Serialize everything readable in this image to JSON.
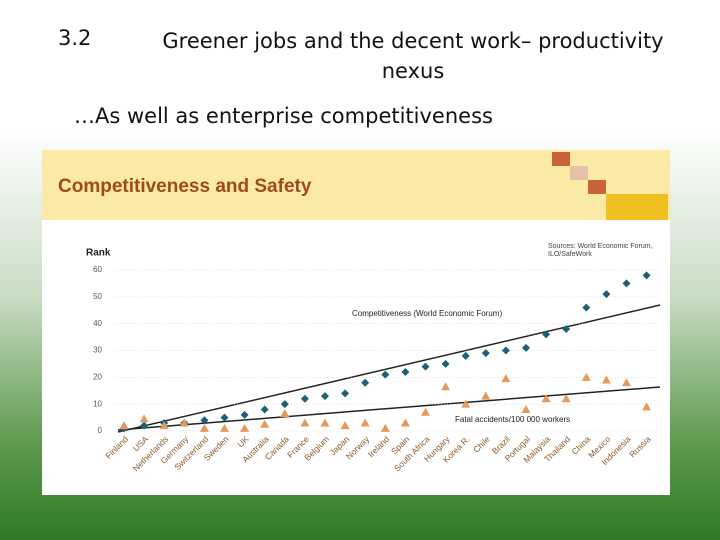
{
  "slide": {
    "number": "3.2",
    "title": "Greener jobs and the decent work– productivity nexus",
    "subtitle": "…As well as enterprise competitiveness"
  },
  "chart_data": {
    "type": "scatter",
    "title": "Competitiveness and Safety",
    "ylabel": "Rank",
    "source": "Sources: World Economic Forum, ILO/SafeWork",
    "categories": [
      "Finland",
      "USA",
      "Netherlands",
      "Germany",
      "Switzerland",
      "Sweden",
      "UK",
      "Australia",
      "Canada",
      "France",
      "Belgium",
      "Japan",
      "Norway",
      "Ireland",
      "Spain",
      "South Africa",
      "Hungary",
      "Korea R.",
      "Chile",
      "Brazil",
      "Portugal",
      "Malaysia",
      "Thailand",
      "China",
      "Mexico",
      "Indonesia",
      "Russia"
    ],
    "series": [
      {
        "name": "Competitiveness (World Economic Forum)",
        "color": "#1f5f7a",
        "marker": "diamond",
        "values": [
          1,
          2,
          3,
          3,
          4,
          5,
          6,
          8,
          10,
          12,
          13,
          14,
          18,
          21,
          22,
          24,
          25,
          28,
          29,
          30,
          31,
          36,
          38,
          46,
          51,
          55,
          58
        ]
      },
      {
        "name": "Fatal accidents/100 000 workers",
        "color": "#e39a5c",
        "marker": "triangle",
        "values": [
          2,
          4.5,
          2,
          3,
          1,
          1,
          1,
          2.5,
          6.5,
          3,
          3,
          2,
          3,
          1,
          3,
          7,
          16.5,
          10,
          13,
          19.5,
          8,
          12,
          12,
          20,
          19,
          18,
          9
        ]
      }
    ],
    "ylim": [
      0,
      60
    ],
    "yticks": [
      0,
      10,
      20,
      30,
      40,
      50,
      60
    ],
    "grid": true
  }
}
